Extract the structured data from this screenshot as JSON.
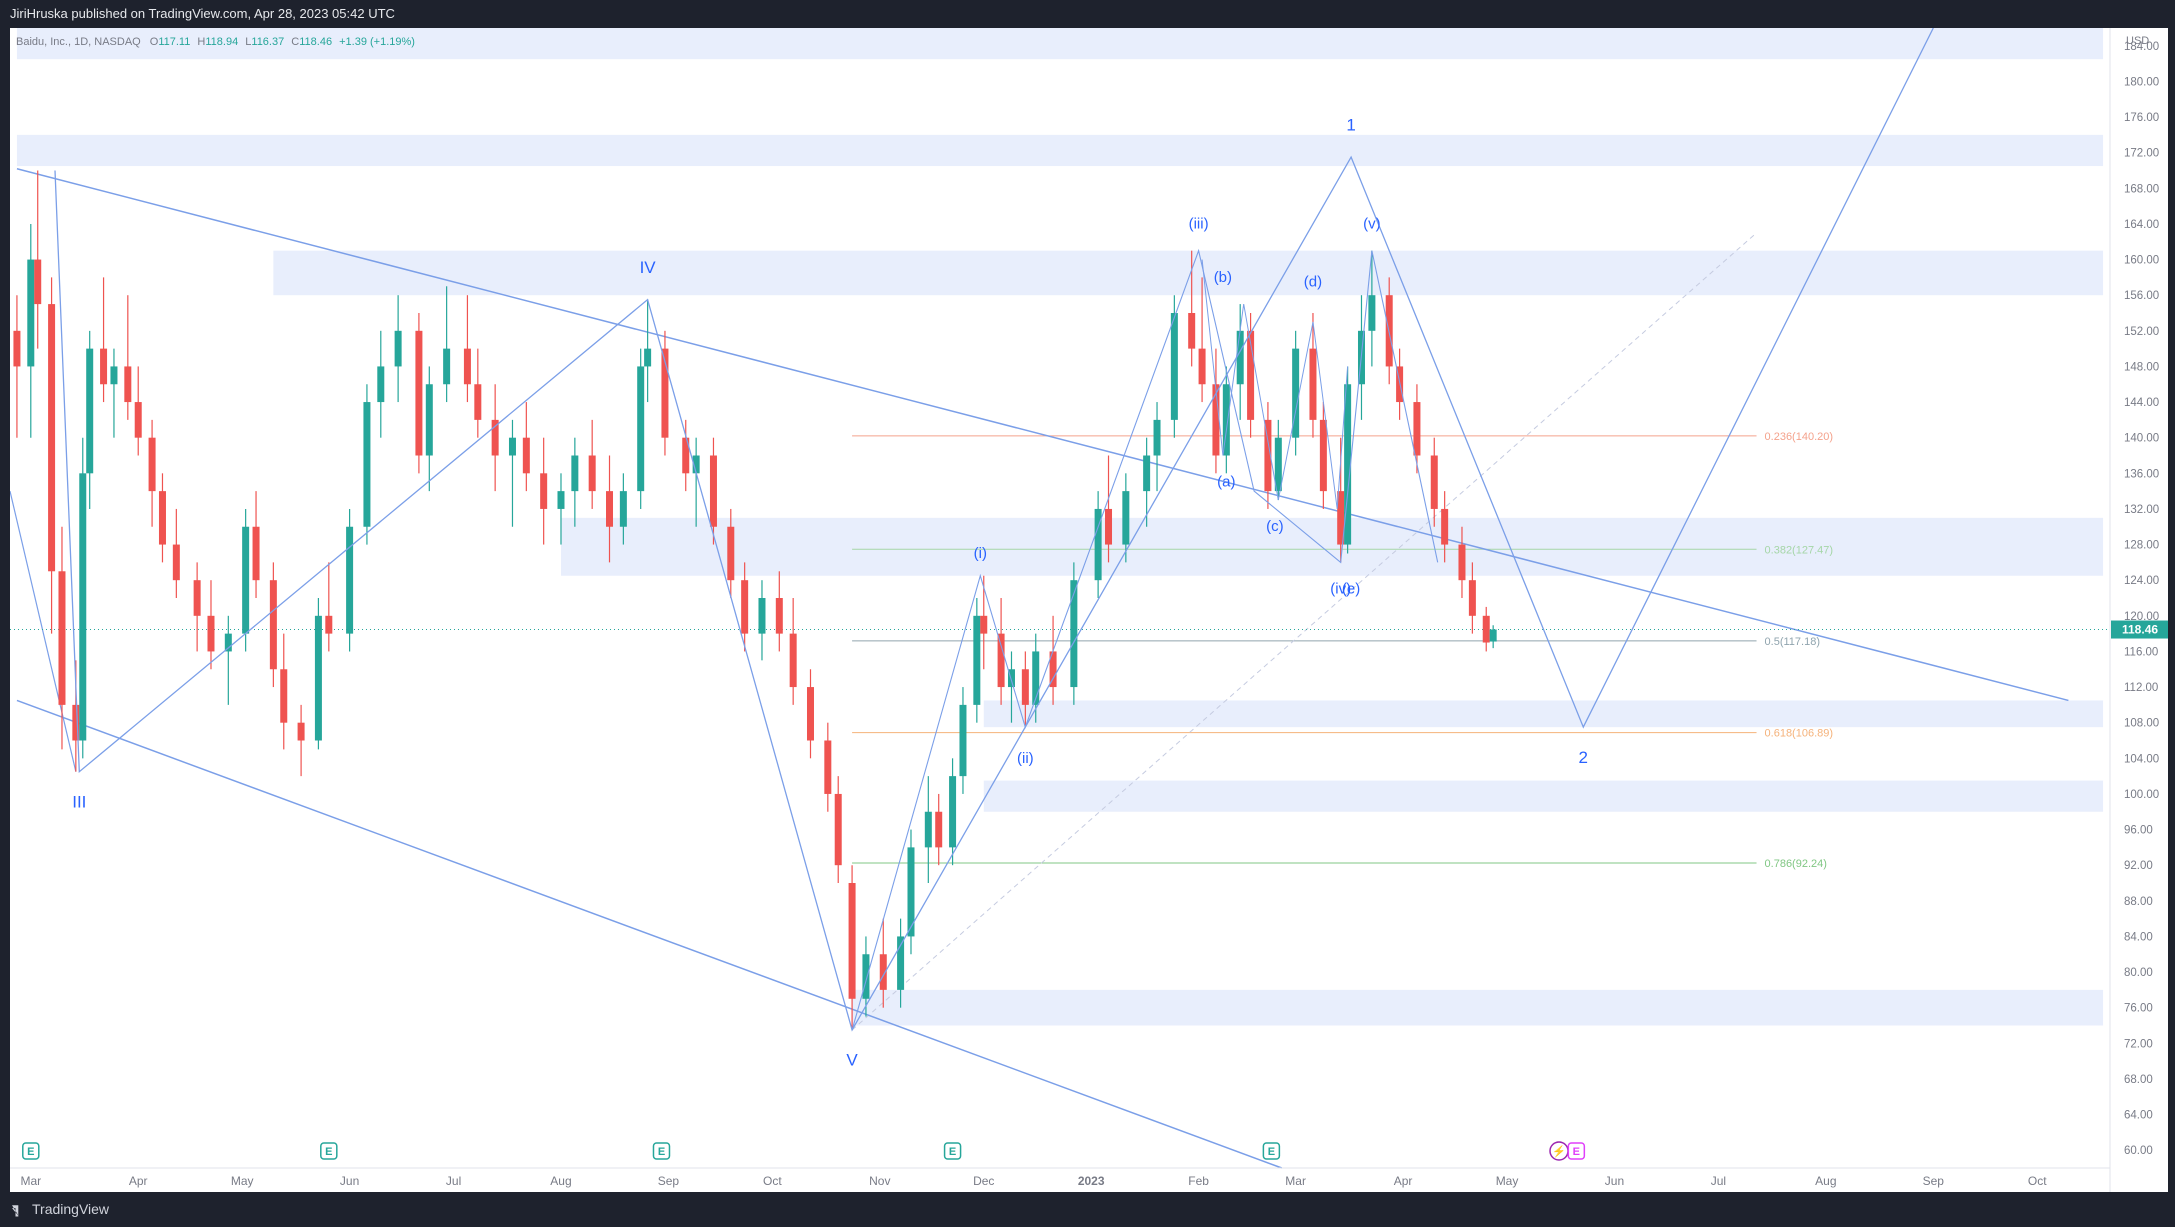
{
  "header": {
    "publisher": "JiriHruska published on TradingView.com, Apr 28, 2023 05:42 UTC"
  },
  "footer": {
    "brand": "TradingView"
  },
  "colors": {
    "bull": "#26a69a",
    "bear": "#ef5350",
    "zone": "#e8eefc",
    "line": "#7b9fe8",
    "label": "#2962ff"
  },
  "chart_data": {
    "type": "candlestick",
    "symbol": "Baidu, Inc., 1D, NASDAQ",
    "ohlc_text": {
      "O": "117.11",
      "H": "118.94",
      "L": "116.37",
      "C": "118.46",
      "change": "+1.39 (+1.19%)"
    },
    "currency": "USD",
    "last_price": "118.46",
    "ylim": [
      58,
      186
    ],
    "yticks": [
      "184.00",
      "180.00",
      "176.00",
      "172.00",
      "168.00",
      "164.00",
      "160.00",
      "156.00",
      "152.00",
      "148.00",
      "144.00",
      "140.00",
      "136.00",
      "132.00",
      "128.00",
      "124.00",
      "120.00",
      "116.00",
      "112.00",
      "108.00",
      "104.00",
      "100.00",
      "96.00",
      "92.00",
      "88.00",
      "84.00",
      "80.00",
      "76.00",
      "72.00",
      "68.00",
      "64.00",
      "60.00"
    ],
    "xticks": [
      {
        "label": "Mar",
        "date": "2022-03-01"
      },
      {
        "label": "Apr",
        "date": "2022-04-01"
      },
      {
        "label": "May",
        "date": "2022-05-01"
      },
      {
        "label": "Jun",
        "date": "2022-06-01"
      },
      {
        "label": "Jul",
        "date": "2022-07-01"
      },
      {
        "label": "Aug",
        "date": "2022-08-01"
      },
      {
        "label": "Sep",
        "date": "2022-09-01"
      },
      {
        "label": "Oct",
        "date": "2022-10-01"
      },
      {
        "label": "Nov",
        "date": "2022-11-01"
      },
      {
        "label": "Dec",
        "date": "2022-12-01"
      },
      {
        "label": "2023",
        "date": "2023-01-01"
      },
      {
        "label": "Feb",
        "date": "2023-02-01"
      },
      {
        "label": "Mar",
        "date": "2023-03-01"
      },
      {
        "label": "Apr",
        "date": "2023-04-01"
      },
      {
        "label": "May",
        "date": "2023-05-01"
      },
      {
        "label": "Jun",
        "date": "2023-06-01"
      },
      {
        "label": "Jul",
        "date": "2023-07-01"
      },
      {
        "label": "Aug",
        "date": "2023-08-01"
      },
      {
        "label": "Sep",
        "date": "2023-09-01"
      },
      {
        "label": "Oct",
        "date": "2023-10-01"
      }
    ],
    "wave_path": [
      {
        "date": "2022-03-08",
        "price": 170
      },
      {
        "date": "2022-03-15",
        "price": 102.5
      },
      {
        "date": "2022-08-26",
        "price": 155.5
      },
      {
        "date": "2022-10-24",
        "price": 73.5
      },
      {
        "date": "2023-03-17",
        "price": 171.5
      },
      {
        "date": "2023-05-23",
        "price": 107.5
      },
      {
        "date": "2023-09-01",
        "price": 186
      }
    ],
    "sub_path": [
      {
        "date": "2022-10-24",
        "price": 73.5
      },
      {
        "date": "2022-11-30",
        "price": 124.5
      },
      {
        "date": "2022-12-13",
        "price": 107.5
      },
      {
        "date": "2023-02-01",
        "price": 161
      },
      {
        "date": "2023-02-17",
        "price": 134
      },
      {
        "date": "2023-03-14",
        "price": 126
      },
      {
        "date": "2023-03-23",
        "price": 161
      },
      {
        "date": "2023-04-11",
        "price": 126
      }
    ],
    "triangle_path": [
      {
        "date": "2023-02-02",
        "price": 160
      },
      {
        "date": "2023-02-08",
        "price": 138
      },
      {
        "date": "2023-02-14",
        "price": 155
      },
      {
        "date": "2023-02-24",
        "price": 133
      },
      {
        "date": "2023-03-06",
        "price": 153
      },
      {
        "date": "2023-03-13",
        "price": 132
      },
      {
        "date": "2023-03-16",
        "price": 148
      }
    ],
    "channel_upper": [
      {
        "date": "2022-02-25",
        "price": 170.2
      },
      {
        "date": "2023-10-10",
        "price": 110.5
      }
    ],
    "channel_lower": [
      {
        "date": "2022-02-25",
        "price": 110.5
      },
      {
        "date": "2023-02-25",
        "price": 58
      }
    ],
    "wave_labels": [
      {
        "text": "III",
        "date": "2022-03-15",
        "price": 98.5
      },
      {
        "text": "IV",
        "date": "2022-08-26",
        "price": 158.5
      },
      {
        "text": "V",
        "date": "2022-10-24",
        "price": 69.5
      },
      {
        "text": "1",
        "date": "2023-03-17",
        "price": 174.5
      },
      {
        "text": "2",
        "date": "2023-05-23",
        "price": 103.5
      },
      {
        "text": "(i)",
        "date": "2022-11-30",
        "price": 126.5
      },
      {
        "text": "(ii)",
        "date": "2022-12-13",
        "price": 103.5
      },
      {
        "text": "(iii)",
        "date": "2023-02-01",
        "price": 163.5
      },
      {
        "text": "(iv)",
        "date": "2023-03-14",
        "price": 122.5
      },
      {
        "text": "(v)",
        "date": "2023-03-23",
        "price": 163.5
      },
      {
        "text": "(a)",
        "date": "2023-02-09",
        "price": 134.5
      },
      {
        "text": "(b)",
        "date": "2023-02-08",
        "price": 157.5
      },
      {
        "text": "(c)",
        "date": "2023-02-23",
        "price": 129.5
      },
      {
        "text": "(d)",
        "date": "2023-03-06",
        "price": 157
      },
      {
        "text": "(e)",
        "date": "2023-03-17",
        "price": 122.5
      }
    ],
    "fib_levels": [
      {
        "label": "0.236(140.20)",
        "price": 140.2,
        "color": "#f4a28c"
      },
      {
        "label": "0.382(127.47)",
        "price": 127.47,
        "color": "#a5d6a7"
      },
      {
        "label": "0.5(117.18)",
        "price": 117.18,
        "color": "#90a4ae"
      },
      {
        "label": "0.618(106.89)",
        "price": 106.89,
        "color": "#f5b27a"
      },
      {
        "label": "0.786(92.24)",
        "price": 92.24,
        "color": "#81c784"
      }
    ],
    "fib_start": "2022-10-24",
    "fib_end": "2023-07-12",
    "zones": [
      {
        "from": 182.5,
        "to": 187.5,
        "start": "2022-02-25",
        "end": "2023-10-20"
      },
      {
        "from": 170.5,
        "to": 174,
        "start": "2022-02-25",
        "end": "2023-10-20"
      },
      {
        "from": 156,
        "to": 161,
        "start": "2022-05-10",
        "end": "2023-10-20"
      },
      {
        "from": 124.5,
        "to": 131,
        "start": "2022-08-01",
        "end": "2023-10-20"
      },
      {
        "from": 107.5,
        "to": 110.5,
        "start": "2022-12-01",
        "end": "2023-10-20"
      },
      {
        "from": 98,
        "to": 101.5,
        "start": "2022-12-01",
        "end": "2023-10-20"
      },
      {
        "from": 74,
        "to": 78,
        "start": "2022-10-24",
        "end": "2023-10-20"
      }
    ],
    "earnings_markers": [
      "2022-03-01",
      "2022-05-26",
      "2022-08-30",
      "2022-11-22",
      "2023-02-22"
    ],
    "future_events": [
      {
        "type": "dividend",
        "date": "2023-05-16"
      },
      {
        "type": "earnings",
        "date": "2023-05-21"
      }
    ],
    "candles": [
      {
        "d": "2022-02-25",
        "o": 152,
        "h": 156,
        "l": 140,
        "c": 148
      },
      {
        "d": "2022-03-01",
        "o": 148,
        "h": 164,
        "l": 140,
        "c": 160
      },
      {
        "d": "2022-03-03",
        "o": 160,
        "h": 170,
        "l": 150,
        "c": 155
      },
      {
        "d": "2022-03-07",
        "o": 155,
        "h": 158,
        "l": 118,
        "c": 125
      },
      {
        "d": "2022-03-10",
        "o": 125,
        "h": 130,
        "l": 105,
        "c": 110
      },
      {
        "d": "2022-03-14",
        "o": 110,
        "h": 115,
        "l": 102.5,
        "c": 106
      },
      {
        "d": "2022-03-16",
        "o": 106,
        "h": 140,
        "l": 104,
        "c": 136
      },
      {
        "d": "2022-03-18",
        "o": 136,
        "h": 152,
        "l": 132,
        "c": 150
      },
      {
        "d": "2022-03-22",
        "o": 150,
        "h": 158,
        "l": 144,
        "c": 146
      },
      {
        "d": "2022-03-25",
        "o": 146,
        "h": 150,
        "l": 140,
        "c": 148
      },
      {
        "d": "2022-03-29",
        "o": 148,
        "h": 156,
        "l": 142,
        "c": 144
      },
      {
        "d": "2022-04-01",
        "o": 144,
        "h": 148,
        "l": 138,
        "c": 140
      },
      {
        "d": "2022-04-05",
        "o": 140,
        "h": 142,
        "l": 130,
        "c": 134
      },
      {
        "d": "2022-04-08",
        "o": 134,
        "h": 136,
        "l": 126,
        "c": 128
      },
      {
        "d": "2022-04-12",
        "o": 128,
        "h": 132,
        "l": 122,
        "c": 124
      },
      {
        "d": "2022-04-18",
        "o": 124,
        "h": 126,
        "l": 116,
        "c": 120
      },
      {
        "d": "2022-04-22",
        "o": 120,
        "h": 124,
        "l": 114,
        "c": 116
      },
      {
        "d": "2022-04-27",
        "o": 116,
        "h": 120,
        "l": 110,
        "c": 118
      },
      {
        "d": "2022-05-02",
        "o": 118,
        "h": 132,
        "l": 116,
        "c": 130
      },
      {
        "d": "2022-05-05",
        "o": 130,
        "h": 134,
        "l": 122,
        "c": 124
      },
      {
        "d": "2022-05-10",
        "o": 124,
        "h": 126,
        "l": 112,
        "c": 114
      },
      {
        "d": "2022-05-13",
        "o": 114,
        "h": 118,
        "l": 105,
        "c": 108
      },
      {
        "d": "2022-05-18",
        "o": 108,
        "h": 110,
        "l": 102,
        "c": 106
      },
      {
        "d": "2022-05-23",
        "o": 106,
        "h": 122,
        "l": 105,
        "c": 120
      },
      {
        "d": "2022-05-26",
        "o": 120,
        "h": 126,
        "l": 116,
        "c": 118
      },
      {
        "d": "2022-06-01",
        "o": 118,
        "h": 132,
        "l": 116,
        "c": 130
      },
      {
        "d": "2022-06-06",
        "o": 130,
        "h": 146,
        "l": 128,
        "c": 144
      },
      {
        "d": "2022-06-10",
        "o": 144,
        "h": 152,
        "l": 140,
        "c": 148
      },
      {
        "d": "2022-06-15",
        "o": 148,
        "h": 156,
        "l": 144,
        "c": 152
      },
      {
        "d": "2022-06-21",
        "o": 152,
        "h": 154,
        "l": 136,
        "c": 138
      },
      {
        "d": "2022-06-24",
        "o": 138,
        "h": 148,
        "l": 134,
        "c": 146
      },
      {
        "d": "2022-06-29",
        "o": 146,
        "h": 157,
        "l": 144,
        "c": 150
      },
      {
        "d": "2022-07-05",
        "o": 150,
        "h": 156,
        "l": 144,
        "c": 146
      },
      {
        "d": "2022-07-08",
        "o": 146,
        "h": 150,
        "l": 140,
        "c": 142
      },
      {
        "d": "2022-07-13",
        "o": 142,
        "h": 146,
        "l": 134,
        "c": 138
      },
      {
        "d": "2022-07-18",
        "o": 138,
        "h": 142,
        "l": 130,
        "c": 140
      },
      {
        "d": "2022-07-22",
        "o": 140,
        "h": 144,
        "l": 134,
        "c": 136
      },
      {
        "d": "2022-07-27",
        "o": 136,
        "h": 140,
        "l": 128,
        "c": 132
      },
      {
        "d": "2022-08-01",
        "o": 132,
        "h": 136,
        "l": 128,
        "c": 134
      },
      {
        "d": "2022-08-05",
        "o": 134,
        "h": 140,
        "l": 130,
        "c": 138
      },
      {
        "d": "2022-08-10",
        "o": 138,
        "h": 142,
        "l": 132,
        "c": 134
      },
      {
        "d": "2022-08-15",
        "o": 134,
        "h": 138,
        "l": 126,
        "c": 130
      },
      {
        "d": "2022-08-19",
        "o": 130,
        "h": 136,
        "l": 128,
        "c": 134
      },
      {
        "d": "2022-08-24",
        "o": 134,
        "h": 150,
        "l": 132,
        "c": 148
      },
      {
        "d": "2022-08-26",
        "o": 148,
        "h": 155.5,
        "l": 144,
        "c": 150
      },
      {
        "d": "2022-08-31",
        "o": 150,
        "h": 152,
        "l": 138,
        "c": 140
      },
      {
        "d": "2022-09-06",
        "o": 140,
        "h": 142,
        "l": 134,
        "c": 136
      },
      {
        "d": "2022-09-09",
        "o": 136,
        "h": 140,
        "l": 130,
        "c": 138
      },
      {
        "d": "2022-09-14",
        "o": 138,
        "h": 140,
        "l": 128,
        "c": 130
      },
      {
        "d": "2022-09-19",
        "o": 130,
        "h": 132,
        "l": 122,
        "c": 124
      },
      {
        "d": "2022-09-23",
        "o": 124,
        "h": 126,
        "l": 116,
        "c": 118
      },
      {
        "d": "2022-09-28",
        "o": 118,
        "h": 124,
        "l": 115,
        "c": 122
      },
      {
        "d": "2022-10-03",
        "o": 122,
        "h": 125,
        "l": 116,
        "c": 118
      },
      {
        "d": "2022-10-07",
        "o": 118,
        "h": 122,
        "l": 110,
        "c": 112
      },
      {
        "d": "2022-10-12",
        "o": 112,
        "h": 114,
        "l": 104,
        "c": 106
      },
      {
        "d": "2022-10-17",
        "o": 106,
        "h": 108,
        "l": 98,
        "c": 100
      },
      {
        "d": "2022-10-20",
        "o": 100,
        "h": 102,
        "l": 90,
        "c": 92
      },
      {
        "d": "2022-10-24",
        "o": 90,
        "h": 92,
        "l": 73.5,
        "c": 77
      },
      {
        "d": "2022-10-28",
        "o": 77,
        "h": 84,
        "l": 75,
        "c": 82
      },
      {
        "d": "2022-11-02",
        "o": 82,
        "h": 86,
        "l": 76,
        "c": 78
      },
      {
        "d": "2022-11-07",
        "o": 78,
        "h": 86,
        "l": 76,
        "c": 84
      },
      {
        "d": "2022-11-10",
        "o": 84,
        "h": 96,
        "l": 82,
        "c": 94
      },
      {
        "d": "2022-11-15",
        "o": 94,
        "h": 102,
        "l": 90,
        "c": 98
      },
      {
        "d": "2022-11-18",
        "o": 98,
        "h": 100,
        "l": 92,
        "c": 94
      },
      {
        "d": "2022-11-22",
        "o": 94,
        "h": 104,
        "l": 92,
        "c": 102
      },
      {
        "d": "2022-11-25",
        "o": 102,
        "h": 112,
        "l": 100,
        "c": 110
      },
      {
        "d": "2022-11-29",
        "o": 110,
        "h": 122,
        "l": 108,
        "c": 120
      },
      {
        "d": "2022-12-01",
        "o": 120,
        "h": 124.5,
        "l": 114,
        "c": 118
      },
      {
        "d": "2022-12-06",
        "o": 118,
        "h": 122,
        "l": 110,
        "c": 112
      },
      {
        "d": "2022-12-09",
        "o": 112,
        "h": 116,
        "l": 108,
        "c": 114
      },
      {
        "d": "2022-12-13",
        "o": 114,
        "h": 116,
        "l": 107.5,
        "c": 110
      },
      {
        "d": "2022-12-16",
        "o": 110,
        "h": 118,
        "l": 108,
        "c": 116
      },
      {
        "d": "2022-12-21",
        "o": 116,
        "h": 120,
        "l": 110,
        "c": 112
      },
      {
        "d": "2022-12-27",
        "o": 112,
        "h": 126,
        "l": 110,
        "c": 124
      },
      {
        "d": "2023-01-03",
        "o": 124,
        "h": 134,
        "l": 122,
        "c": 132
      },
      {
        "d": "2023-01-06",
        "o": 132,
        "h": 138,
        "l": 126,
        "c": 128
      },
      {
        "d": "2023-01-11",
        "o": 128,
        "h": 136,
        "l": 126,
        "c": 134
      },
      {
        "d": "2023-01-17",
        "o": 134,
        "h": 140,
        "l": 130,
        "c": 138
      },
      {
        "d": "2023-01-20",
        "o": 138,
        "h": 144,
        "l": 134,
        "c": 142
      },
      {
        "d": "2023-01-25",
        "o": 142,
        "h": 156,
        "l": 140,
        "c": 154
      },
      {
        "d": "2023-01-30",
        "o": 154,
        "h": 161,
        "l": 148,
        "c": 150
      },
      {
        "d": "2023-02-02",
        "o": 150,
        "h": 158,
        "l": 144,
        "c": 146
      },
      {
        "d": "2023-02-06",
        "o": 146,
        "h": 150,
        "l": 136,
        "c": 138
      },
      {
        "d": "2023-02-09",
        "o": 138,
        "h": 148,
        "l": 136,
        "c": 146
      },
      {
        "d": "2023-02-13",
        "o": 146,
        "h": 155,
        "l": 142,
        "c": 152
      },
      {
        "d": "2023-02-16",
        "o": 152,
        "h": 154,
        "l": 140,
        "c": 142
      },
      {
        "d": "2023-02-21",
        "o": 142,
        "h": 144,
        "l": 132,
        "c": 134
      },
      {
        "d": "2023-02-24",
        "o": 134,
        "h": 142,
        "l": 133,
        "c": 140
      },
      {
        "d": "2023-03-01",
        "o": 140,
        "h": 152,
        "l": 138,
        "c": 150
      },
      {
        "d": "2023-03-06",
        "o": 150,
        "h": 154,
        "l": 140,
        "c": 142
      },
      {
        "d": "2023-03-09",
        "o": 142,
        "h": 144,
        "l": 132,
        "c": 134
      },
      {
        "d": "2023-03-14",
        "o": 134,
        "h": 140,
        "l": 126,
        "c": 128
      },
      {
        "d": "2023-03-16",
        "o": 128,
        "h": 148,
        "l": 127,
        "c": 146
      },
      {
        "d": "2023-03-20",
        "o": 146,
        "h": 156,
        "l": 142,
        "c": 152
      },
      {
        "d": "2023-03-23",
        "o": 152,
        "h": 161,
        "l": 148,
        "c": 156
      },
      {
        "d": "2023-03-28",
        "o": 156,
        "h": 158,
        "l": 146,
        "c": 148
      },
      {
        "d": "2023-03-31",
        "o": 148,
        "h": 150,
        "l": 142,
        "c": 144
      },
      {
        "d": "2023-04-05",
        "o": 144,
        "h": 146,
        "l": 136,
        "c": 138
      },
      {
        "d": "2023-04-10",
        "o": 138,
        "h": 140,
        "l": 130,
        "c": 132
      },
      {
        "d": "2023-04-13",
        "o": 132,
        "h": 134,
        "l": 126,
        "c": 128
      },
      {
        "d": "2023-04-18",
        "o": 128,
        "h": 130,
        "l": 122,
        "c": 124
      },
      {
        "d": "2023-04-21",
        "o": 124,
        "h": 126,
        "l": 118,
        "c": 120
      },
      {
        "d": "2023-04-25",
        "o": 120,
        "h": 121,
        "l": 116,
        "c": 117
      },
      {
        "d": "2023-04-27",
        "o": 117.11,
        "h": 118.94,
        "l": 116.37,
        "c": 118.46
      }
    ]
  }
}
